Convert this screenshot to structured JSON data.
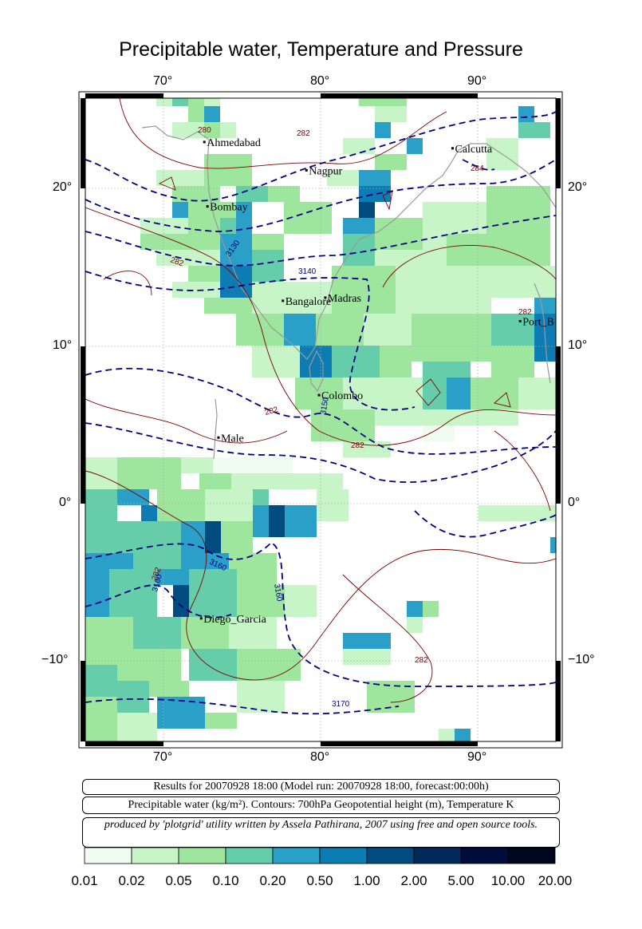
{
  "title": "Precipitable water, Temperature and Pressure",
  "axes": {
    "lon_ticks": [
      "70°",
      "80°",
      "90°"
    ],
    "lat_ticks": [
      "20°",
      "10°",
      "0°",
      "−10°"
    ]
  },
  "cities": [
    {
      "name": "Ahmedabad",
      "lon": 72.6,
      "lat": 23.0
    },
    {
      "name": "Calcutta",
      "lon": 88.4,
      "lat": 22.6
    },
    {
      "name": "Nagpur",
      "lon": 79.1,
      "lat": 21.2
    },
    {
      "name": "Bombay",
      "lon": 72.8,
      "lat": 18.9
    },
    {
      "name": "Madras",
      "lon": 80.3,
      "lat": 13.1
    },
    {
      "name": "Bangalore",
      "lon": 77.6,
      "lat": 12.9
    },
    {
      "name": "Port_B",
      "lon": 92.7,
      "lat": 11.6
    },
    {
      "name": "Colombo",
      "lon": 79.9,
      "lat": 6.9
    },
    {
      "name": "Male",
      "lon": 73.5,
      "lat": 4.2
    },
    {
      "name": "Diego_Garcia",
      "lon": 72.4,
      "lat": -7.3
    }
  ],
  "contour_labels": {
    "temperature": [
      "280",
      "282",
      "284",
      "282",
      "282",
      "282",
      "282",
      "282",
      "282"
    ],
    "height": [
      "3130",
      "3140",
      "3150",
      "3160",
      "3160",
      "3160",
      "3170"
    ]
  },
  "info": {
    "line1": "Results for 20070928 18:00 (Model run: 20070928 18:00, forecast:00:00h)",
    "line2": "Precipitable water (kg/m²).  Contours: 700hPa Geopotential height (m), Temperature K",
    "line3": "produced by 'plotgrid' utility written by Assela Pathirana, 2007 using free and open source tools."
  },
  "colorbar": {
    "labels": [
      "0.01",
      "0.02",
      "0.05",
      "0.10",
      "0.20",
      "0.50",
      "1.00",
      "2.00",
      "5.00",
      "10.00",
      "20.00"
    ],
    "colors": [
      "#effcef",
      "#c8f5c8",
      "#9ee69e",
      "#66cdaa",
      "#2aa0c8",
      "#0d7cb3",
      "#004c7f",
      "#022a5a",
      "#000c3a",
      "#00061e"
    ]
  },
  "colors": {
    "height_contour": "#000080",
    "temperature_contour": "#7a0000",
    "coast": "#999999"
  }
}
